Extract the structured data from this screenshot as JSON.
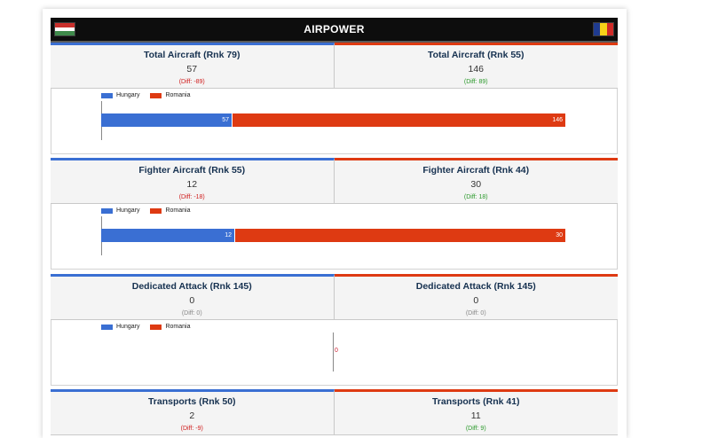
{
  "header": {
    "title": "AIRPOWER",
    "flag_left": [
      "#ffffff",
      "#c9302c",
      "#3f8a4b"
    ],
    "flag_right": [
      "#1f3b8f",
      "#f7d218",
      "#cf2a27"
    ]
  },
  "legend": {
    "a": "Hungary",
    "b": "Romania"
  },
  "colors": {
    "hungary": "#3a6fd3",
    "romania": "#de3a12"
  },
  "sections": [
    {
      "left": {
        "label": "Total Aircraft (Rnk 79)",
        "value": "57",
        "diff": "(Diff: -89)"
      },
      "right": {
        "label": "Total Aircraft (Rnk 55)",
        "value": "146",
        "diff": "(Diff: 89)"
      },
      "bars": {
        "a": "57",
        "b": "146"
      }
    },
    {
      "left": {
        "label": "Fighter Aircraft (Rnk 55)",
        "value": "12",
        "diff": "(Diff: -18)"
      },
      "right": {
        "label": "Fighter Aircraft (Rnk 44)",
        "value": "30",
        "diff": "(Diff: 18)"
      },
      "bars": {
        "a": "12",
        "b": "30"
      }
    },
    {
      "left": {
        "label": "Dedicated Attack (Rnk 145)",
        "value": "0",
        "diff": "(Diff: 0)"
      },
      "right": {
        "label": "Dedicated Attack (Rnk 145)",
        "value": "0",
        "diff": "(Diff: 0)"
      },
      "bars": {
        "zero": "0"
      }
    },
    {
      "left": {
        "label": "Transports (Rnk 50)",
        "value": "2",
        "diff": "(Diff: -9)"
      },
      "right": {
        "label": "Transports (Rnk 41)",
        "value": "11",
        "diff": "(Diff: 9)"
      }
    }
  ]
}
